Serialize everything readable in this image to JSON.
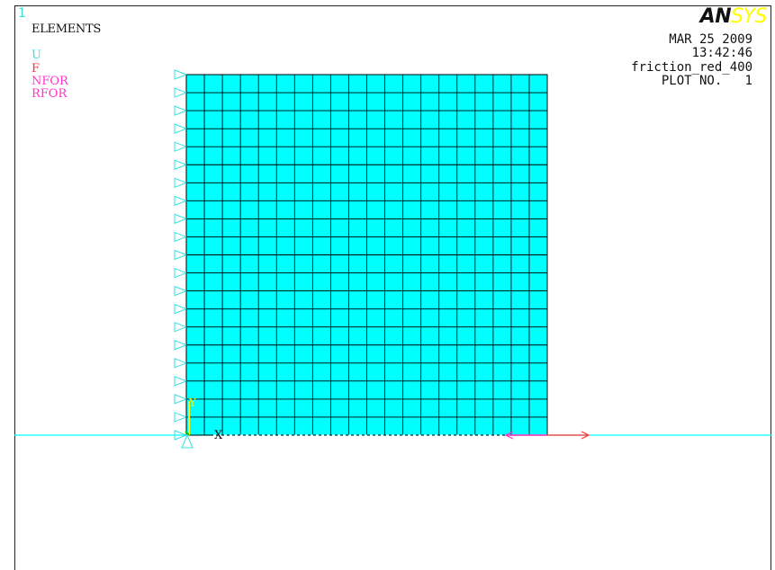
{
  "window_number": "1",
  "plot_title": "ELEMENTS",
  "legend": [
    {
      "label": "U",
      "color": "#33e0e0"
    },
    {
      "label": "F",
      "color": "#ff3030"
    },
    {
      "label": "NFOR",
      "color": "#ff33cc"
    },
    {
      "label": "RFOR",
      "color": "#ff33cc"
    }
  ],
  "brand": {
    "part1": "AN",
    "part2": "SYS"
  },
  "info": {
    "date": "MAR 25 2009",
    "time": "13:42:46",
    "jobname": "friction_red_400",
    "plot_no": "PLOT NO.   1"
  },
  "triad": {
    "x_label": "X",
    "y_label": "Y"
  },
  "mesh": {
    "rows": 20,
    "cols": 20,
    "fill_color": "#00ffff",
    "line_color": "#000000"
  },
  "colors": {
    "ground_line": "#00ffff",
    "constraint": "#33e0e0",
    "force_arrow": "#ff3030",
    "nfor_arrow": "#ff33cc"
  }
}
